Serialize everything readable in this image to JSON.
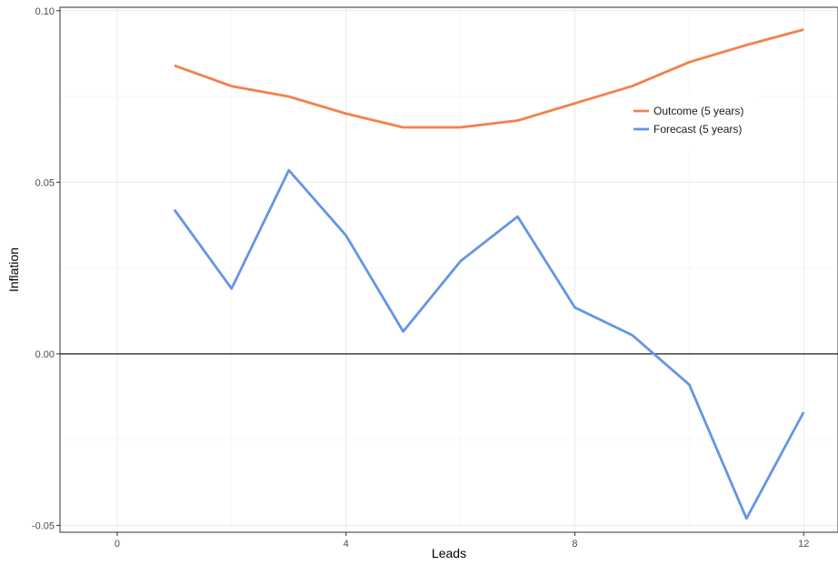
{
  "chart_data": {
    "type": "line",
    "title": "",
    "xlabel": "Leads",
    "ylabel": "Inflation",
    "xlim": [
      -1.0,
      12.6
    ],
    "ylim": [
      -0.052,
      0.101
    ],
    "x_major_ticks": [
      0,
      4,
      8,
      12
    ],
    "x_tick_labels": [
      "0",
      "4",
      "8",
      "12"
    ],
    "x_minor_ticks": [
      2,
      6,
      10
    ],
    "y_major_ticks": [
      -0.05,
      0.0,
      0.05,
      0.1
    ],
    "y_tick_labels": [
      "-0.05",
      "0.00",
      "0.05",
      "0.10"
    ],
    "y_minor_ticks": [
      -0.025,
      0.025,
      0.075
    ],
    "hline": 0.0,
    "grid": true,
    "legend_position": "top-right",
    "x": [
      1,
      2,
      3,
      4,
      5,
      6,
      7,
      8,
      9,
      10,
      11,
      12
    ],
    "series": [
      {
        "name": "Outcome (5 years)",
        "color": "#F4804D",
        "values": [
          0.084,
          0.078,
          0.075,
          0.07,
          0.066,
          0.066,
          0.068,
          0.073,
          0.078,
          0.085,
          0.09,
          0.0945
        ]
      },
      {
        "name": "Forecast (5 years)",
        "color": "#6495E6",
        "values": [
          0.042,
          0.019,
          0.0535,
          0.0345,
          0.0065,
          0.027,
          0.04,
          0.0135,
          0.0055,
          -0.009,
          -0.048,
          -0.017
        ]
      }
    ]
  }
}
